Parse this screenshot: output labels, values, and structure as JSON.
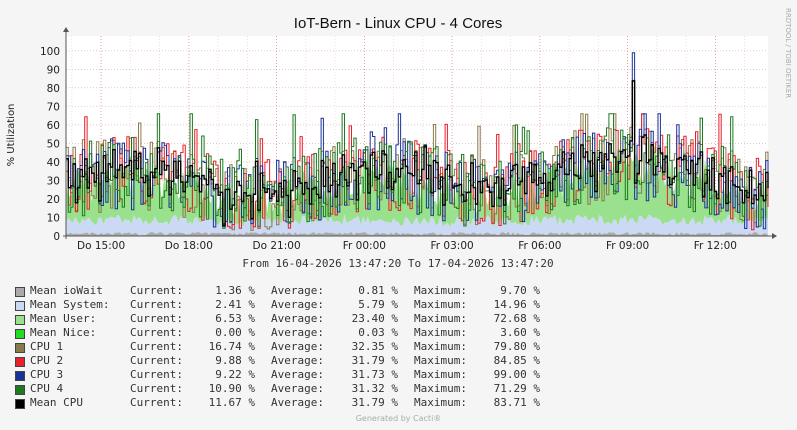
{
  "chart_data": {
    "type": "area",
    "title": "IoT-Bern - Linux CPU - 4 Cores",
    "ylabel": "% Utilization",
    "watermark": "RRDTOOL / TOBI OETIKER",
    "ylim": [
      0,
      108
    ],
    "yticks": [
      0,
      10,
      20,
      30,
      40,
      50,
      60,
      70,
      80,
      90,
      100
    ],
    "xlim": [
      0,
      24
    ],
    "xticks": [
      {
        "t": 1.2,
        "label": "Do 15:00"
      },
      {
        "t": 4.2,
        "label": "Do 18:00"
      },
      {
        "t": 7.2,
        "label": "Do 21:00"
      },
      {
        "t": 10.2,
        "label": "Fr 00:00"
      },
      {
        "t": 13.2,
        "label": "Fr 03:00"
      },
      {
        "t": 16.2,
        "label": "Fr 06:00"
      },
      {
        "t": 19.2,
        "label": "Fr 09:00"
      },
      {
        "t": 22.2,
        "label": "Fr 12:00"
      }
    ],
    "time_range": "From 16-04-2026 13:47:20 To 17-04-2026 13:47:20",
    "series": [
      {
        "name": "Mean ioWait",
        "color": "#AAAAAA",
        "current": "1.36 %",
        "average": "0.81 %",
        "maximum": "9.70 %"
      },
      {
        "name": "Mean System:",
        "color": "#CCD9F5",
        "current": "2.41 %",
        "average": "5.79 %",
        "maximum": "14.96 %"
      },
      {
        "name": "Mean User:",
        "color": "#99E18C",
        "current": "6.53 %",
        "average": "23.40 %",
        "maximum": "72.68 %"
      },
      {
        "name": "Mean Nice:",
        "color": "#22DD22",
        "current": "0.00 %",
        "average": "0.03 %",
        "maximum": "3.60 %"
      },
      {
        "name": "CPU 1",
        "color": "#8A7A4A",
        "current": "16.74 %",
        "average": "32.35 %",
        "maximum": "79.80 %"
      },
      {
        "name": "CPU 2",
        "color": "#E8202A",
        "current": "9.88 %",
        "average": "31.79 %",
        "maximum": "84.85 %"
      },
      {
        "name": "CPU 3",
        "color": "#1A3399",
        "current": "9.22 %",
        "average": "31.73 %",
        "maximum": "99.00 %"
      },
      {
        "name": "CPU 4",
        "color": "#1E7A1E",
        "current": "10.90 %",
        "average": "31.32 %",
        "maximum": "71.29 %"
      },
      {
        "name": "Mean CPU",
        "color": "#000000",
        "current": "11.67 %",
        "average": "31.79 %",
        "maximum": "83.71 %"
      }
    ]
  },
  "legend_labels": {
    "current": "Current:",
    "average": "Average:",
    "maximum": "Maximum:"
  },
  "footer": "Generated by Cacti®"
}
